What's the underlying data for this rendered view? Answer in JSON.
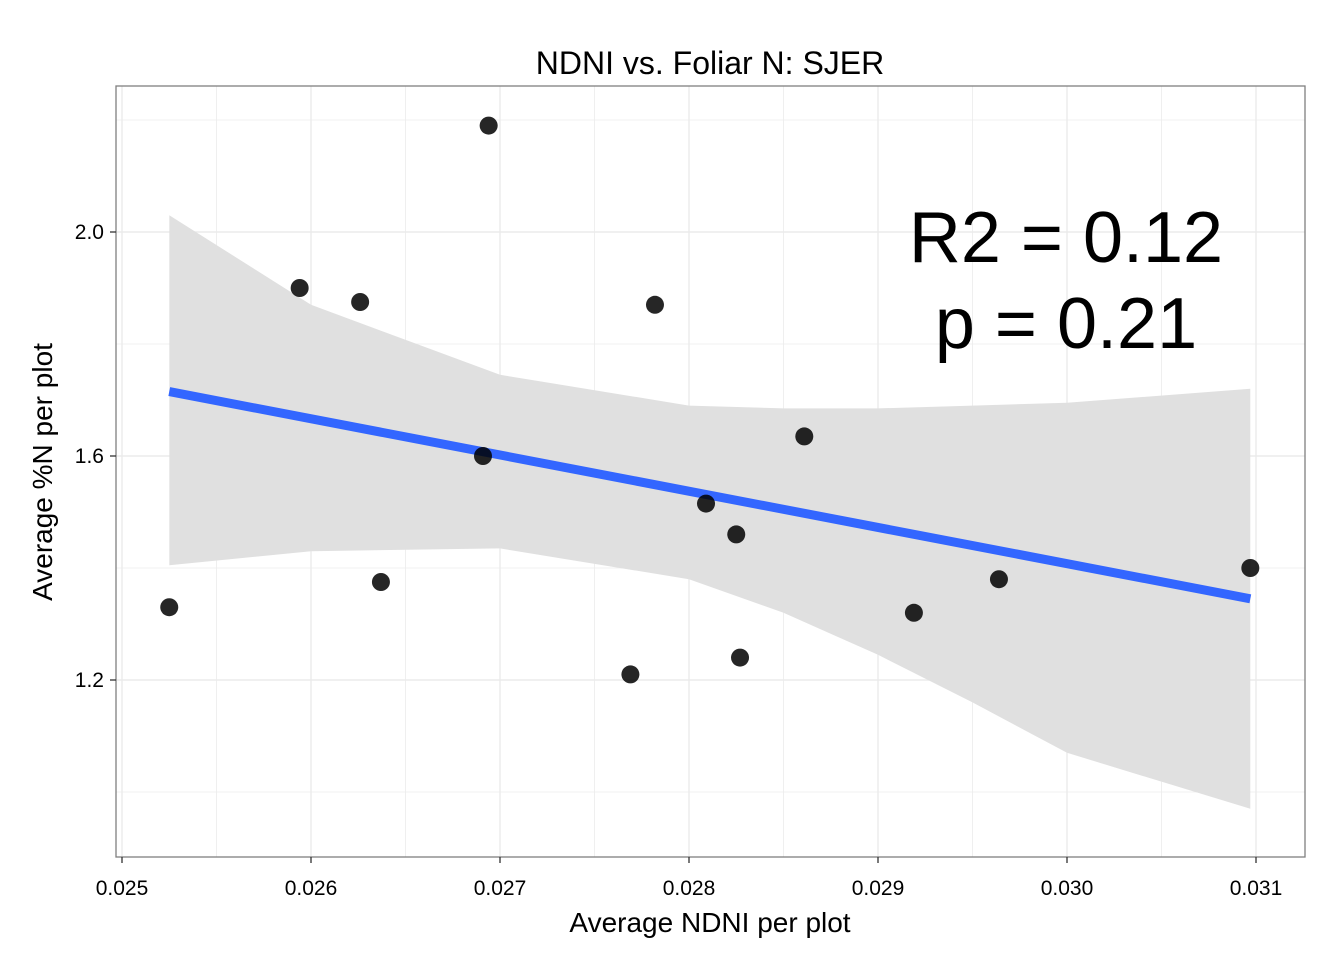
{
  "chart_data": {
    "type": "scatter",
    "title": "NDNI vs. Foliar N: SJER",
    "xlabel": "Average NDNI per plot",
    "ylabel": "Average %N per plot",
    "xlim": [
      0.025,
      0.031
    ],
    "ylim": [
      0.95,
      2.2
    ],
    "xticks": [
      "0.025",
      "0.026",
      "0.027",
      "0.028",
      "0.029",
      "0.030",
      "0.031"
    ],
    "xtick_values": [
      0.025,
      0.026,
      0.027,
      0.028,
      0.029,
      0.03,
      0.031
    ],
    "yticks": [
      "1.2",
      "1.6",
      "2.0"
    ],
    "ytick_values": [
      1.2,
      1.6,
      2.0
    ],
    "grid": true,
    "points": [
      {
        "x": 0.02525,
        "y": 1.33
      },
      {
        "x": 0.02594,
        "y": 1.9
      },
      {
        "x": 0.02626,
        "y": 1.875
      },
      {
        "x": 0.02637,
        "y": 1.375
      },
      {
        "x": 0.02691,
        "y": 1.6
      },
      {
        "x": 0.02694,
        "y": 2.19
      },
      {
        "x": 0.02769,
        "y": 1.21
      },
      {
        "x": 0.02782,
        "y": 1.87
      },
      {
        "x": 0.02809,
        "y": 1.515
      },
      {
        "x": 0.02825,
        "y": 1.46
      },
      {
        "x": 0.02827,
        "y": 1.24
      },
      {
        "x": 0.02861,
        "y": 1.635
      },
      {
        "x": 0.02919,
        "y": 1.32
      },
      {
        "x": 0.02964,
        "y": 1.38
      },
      {
        "x": 0.03097,
        "y": 1.4
      }
    ],
    "fit_line": {
      "x": [
        0.02525,
        0.03097
      ],
      "y": [
        1.715,
        1.345
      ]
    },
    "confidence_band": {
      "x": [
        0.02525,
        0.026,
        0.027,
        0.028,
        0.0285,
        0.029,
        0.0295,
        0.03,
        0.03097
      ],
      "upper": [
        2.03,
        1.87,
        1.745,
        1.69,
        1.685,
        1.685,
        1.69,
        1.695,
        1.72
      ],
      "lower": [
        1.405,
        1.43,
        1.435,
        1.38,
        1.32,
        1.245,
        1.16,
        1.07,
        0.97
      ]
    },
    "annotations": [
      "R2 = 0.12",
      "p = 0.21"
    ],
    "colors": {
      "points": "#000000",
      "fit_line": "#3366ff",
      "band": "#e0e0e0",
      "grid": "#ebebeb",
      "panel_border": "#7f7f7f"
    }
  }
}
